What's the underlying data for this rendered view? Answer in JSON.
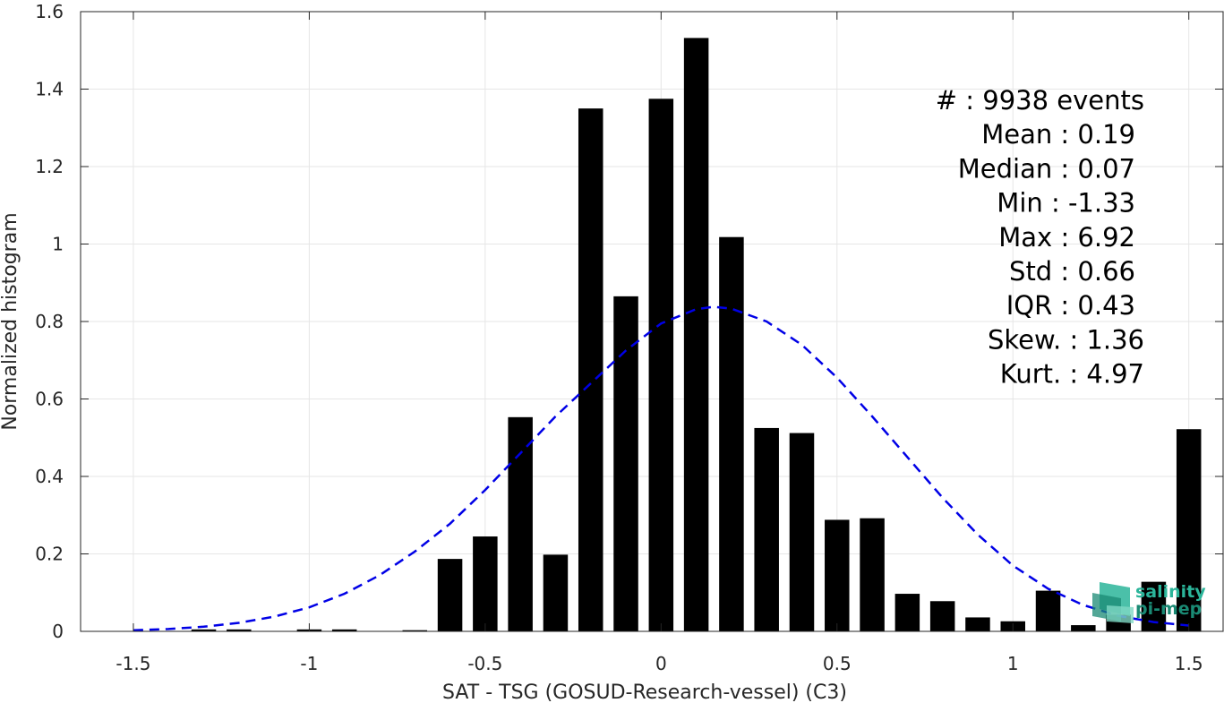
{
  "colors": {
    "bar": "#000000",
    "fit_curve": "#0000e6",
    "grid": "#e6e6e6",
    "axis": "#262626",
    "logo_primary": "#2bb59a",
    "logo_dark": "#1a8a74"
  },
  "chart_data": {
    "type": "bar",
    "xlabel": "SAT - TSG (GOSUD-Research-vessel) (C3)",
    "ylabel": "Normalized histogram",
    "xlim": [
      -1.65,
      1.6
    ],
    "ylim": [
      0,
      1.6
    ],
    "xticks": [
      -1.5,
      -1,
      -0.5,
      0,
      0.5,
      1,
      1.5
    ],
    "xtick_labels": [
      "-1.5",
      "-1",
      "-0.5",
      "0",
      "0.5",
      "1",
      "1.5"
    ],
    "yticks": [
      0,
      0.2,
      0.4,
      0.6,
      0.8,
      1,
      1.2,
      1.4,
      1.6
    ],
    "ytick_labels": [
      "0",
      "0.2",
      "0.4",
      "0.6",
      "0.8",
      "1",
      "1.2",
      "1.4",
      "1.6"
    ],
    "grid": true,
    "bar_width": 0.07,
    "bars": {
      "x": [
        -1.3,
        -1.2,
        -1.0,
        -0.9,
        -0.7,
        -0.6,
        -0.5,
        -0.4,
        -0.3,
        -0.2,
        -0.1,
        0.0,
        0.1,
        0.2,
        0.3,
        0.4,
        0.5,
        0.6,
        0.7,
        0.8,
        0.9,
        1.0,
        1.1,
        1.2,
        1.3,
        1.4,
        1.5
      ],
      "values": [
        0.005,
        0.005,
        0.005,
        0.005,
        0.003,
        0.187,
        0.245,
        0.553,
        0.198,
        1.35,
        0.865,
        1.375,
        1.532,
        1.018,
        0.525,
        0.512,
        0.288,
        0.292,
        0.097,
        0.078,
        0.036,
        0.026,
        0.105,
        0.016,
        0.043,
        0.128,
        0.522
      ]
    },
    "fit_curve": {
      "style": "dashed",
      "x": [
        -1.5,
        -1.4,
        -1.3,
        -1.2,
        -1.1,
        -1.0,
        -0.9,
        -0.8,
        -0.7,
        -0.6,
        -0.5,
        -0.4,
        -0.3,
        -0.2,
        -0.1,
        0.0,
        0.1,
        0.15,
        0.2,
        0.3,
        0.4,
        0.5,
        0.6,
        0.7,
        0.8,
        0.9,
        1.0,
        1.1,
        1.2,
        1.3,
        1.4,
        1.5
      ],
      "y": [
        0.003,
        0.006,
        0.012,
        0.022,
        0.038,
        0.062,
        0.097,
        0.145,
        0.206,
        0.278,
        0.365,
        0.46,
        0.555,
        0.64,
        0.725,
        0.795,
        0.832,
        0.838,
        0.833,
        0.8,
        0.74,
        0.655,
        0.555,
        0.45,
        0.345,
        0.25,
        0.17,
        0.11,
        0.068,
        0.04,
        0.024,
        0.015
      ]
    },
    "annotations": [
      "#  : 9938 events",
      "Mean : 0.19",
      "Median : 0.07",
      "Min : -1.33",
      "Max : 6.92",
      "Std : 0.66",
      "IQR : 0.43",
      "Skew. : 1.36",
      "Kurt. : 4.97"
    ]
  },
  "logo": {
    "line1": "salinity",
    "line2": "pi-mep"
  }
}
